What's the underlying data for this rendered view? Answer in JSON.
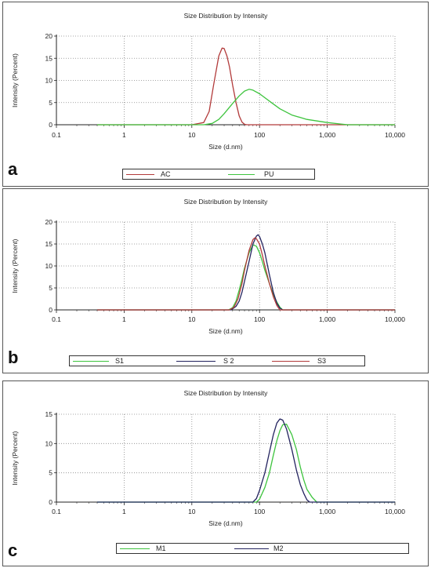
{
  "colors": {
    "red": "#b23a3a",
    "green": "#3ec43e",
    "navy": "#23235f"
  },
  "chart_data": [
    {
      "type": "line",
      "panel": "a",
      "title": "Size Distribution by Intensity",
      "xlabel": "Size (d.nm)",
      "ylabel": "Intensity (Percent)",
      "xscale": "log",
      "xlim": [
        0.1,
        10000
      ],
      "ylim": [
        0,
        20
      ],
      "xticks": [
        0.1,
        1,
        10,
        100,
        1000,
        10000
      ],
      "xtick_labels": [
        "0.1",
        "1",
        "10",
        "100",
        "1,000",
        "10,000"
      ],
      "yticks": [
        0,
        5,
        10,
        15,
        20
      ],
      "ytick_labels": [
        "0",
        "5",
        "10",
        "15",
        "20"
      ],
      "grid": true,
      "legend_position": "bottom",
      "series": [
        {
          "name": "AC",
          "color": "#b23a3a",
          "x": [
            0.4,
            10,
            15,
            18,
            21,
            25,
            28,
            30,
            33,
            36,
            40,
            45,
            50,
            55,
            60,
            65,
            10000
          ],
          "y": [
            0,
            0,
            0.5,
            3,
            9,
            15.5,
            17.3,
            17.2,
            15.5,
            13,
            9,
            5,
            2,
            0.6,
            0.1,
            0,
            0
          ]
        },
        {
          "name": "PU",
          "color": "#3ec43e",
          "x": [
            0.4,
            15,
            20,
            25,
            30,
            40,
            50,
            60,
            70,
            80,
            100,
            150,
            200,
            300,
            500,
            1000,
            1500,
            2000,
            10000
          ],
          "y": [
            0,
            0,
            0.3,
            1.2,
            2.5,
            4.8,
            6.5,
            7.6,
            8.0,
            7.8,
            7.0,
            5.0,
            3.6,
            2.2,
            1.2,
            0.5,
            0.2,
            0,
            0
          ]
        }
      ]
    },
    {
      "type": "line",
      "panel": "b",
      "title": "Size Distribution by Intensity",
      "xlabel": "Size (d.nm)",
      "ylabel": "Intensity (Percent)",
      "xscale": "log",
      "xlim": [
        0.1,
        10000
      ],
      "ylim": [
        0,
        20
      ],
      "xticks": [
        0.1,
        1,
        10,
        100,
        1000,
        10000
      ],
      "xtick_labels": [
        "0.1",
        "1",
        "10",
        "100",
        "1,000",
        "10,000"
      ],
      "yticks": [
        0,
        5,
        10,
        15,
        20
      ],
      "ytick_labels": [
        "0",
        "5",
        "10",
        "15",
        "20"
      ],
      "grid": true,
      "legend_position": "bottom",
      "series": [
        {
          "name": "S1",
          "color": "#3ec43e",
          "x": [
            0.4,
            35,
            40,
            45,
            50,
            55,
            60,
            70,
            80,
            90,
            100,
            110,
            120,
            140,
            160,
            180,
            200,
            220,
            10000
          ],
          "y": [
            0,
            0,
            0.5,
            2,
            4.5,
            7,
            9.5,
            13,
            14.8,
            14.5,
            13,
            11,
            9,
            6,
            3.5,
            1.8,
            0.6,
            0,
            0
          ]
        },
        {
          "name": "S 2",
          "color": "#23235f",
          "x": [
            0.4,
            38,
            45,
            50,
            55,
            60,
            70,
            80,
            90,
            95,
            100,
            110,
            120,
            140,
            160,
            180,
            200,
            220,
            10000
          ],
          "y": [
            0,
            0,
            0.8,
            2,
            4,
            6.5,
            11,
            15,
            16.8,
            17.1,
            16.7,
            15,
            13,
            8,
            4,
            1.5,
            0.4,
            0,
            0
          ]
        },
        {
          "name": "S3",
          "color": "#b23a3a",
          "x": [
            0.4,
            36,
            42,
            48,
            55,
            60,
            70,
            80,
            85,
            90,
            100,
            110,
            120,
            140,
            160,
            180,
            200,
            10000
          ],
          "y": [
            0,
            0,
            0.6,
            2.5,
            6,
            9,
            13.5,
            16,
            16.4,
            16.2,
            15,
            12.5,
            10,
            6,
            3,
            1,
            0,
            0
          ]
        }
      ]
    },
    {
      "type": "line",
      "panel": "c",
      "title": "Size Distribution by Intensity",
      "xlabel": "Size (d.nm)",
      "ylabel": "Intensity (Percent)",
      "xscale": "log",
      "xlim": [
        0.1,
        10000
      ],
      "ylim": [
        0,
        15
      ],
      "xticks": [
        0.1,
        1,
        10,
        100,
        1000,
        10000
      ],
      "xtick_labels": [
        "0.1",
        "1",
        "10",
        "100",
        "1,000",
        "10,000"
      ],
      "yticks": [
        0,
        5,
        10,
        15
      ],
      "ytick_labels": [
        "0",
        "5",
        "10",
        "15"
      ],
      "grid": true,
      "legend_position": "bottom",
      "series": [
        {
          "name": "M1",
          "color": "#3ec43e",
          "x": [
            0.4,
            90,
            100,
            120,
            140,
            160,
            180,
            200,
            220,
            250,
            300,
            350,
            400,
            450,
            500,
            600,
            700,
            10000
          ],
          "y": [
            0,
            0,
            0.5,
            2.5,
            5,
            8,
            10.5,
            12.2,
            13.2,
            13.3,
            11.5,
            9,
            6,
            3.8,
            2.2,
            0.8,
            0,
            0
          ]
        },
        {
          "name": "M2",
          "color": "#23235f",
          "x": [
            0.4,
            80,
            90,
            100,
            120,
            140,
            160,
            180,
            200,
            220,
            250,
            300,
            350,
            400,
            450,
            500,
            550,
            10000
          ],
          "y": [
            0,
            0,
            0.6,
            2,
            5,
            8.5,
            11.5,
            13.5,
            14.2,
            14,
            12.5,
            9,
            5.5,
            3,
            1.5,
            0.4,
            0,
            0
          ]
        }
      ]
    }
  ]
}
